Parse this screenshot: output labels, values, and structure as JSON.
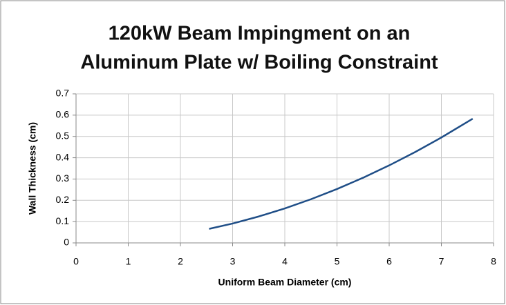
{
  "chart_data": {
    "type": "line",
    "title": [
      "120kW Beam Impingment on an",
      "Aluminum Plate w/ Boiling Constraint"
    ],
    "xlabel": "Uniform Beam Diameter (cm)",
    "ylabel": "Wall Thickness (cm)",
    "x": [
      2.55,
      3,
      3.5,
      4,
      4.5,
      5,
      5.5,
      6,
      6.5,
      7,
      7.6
    ],
    "series": [
      {
        "color": "#1f4e87",
        "values": [
          0.066,
          0.091,
          0.124,
          0.162,
          0.205,
          0.253,
          0.306,
          0.364,
          0.427,
          0.495,
          0.583
        ]
      }
    ],
    "xlim": [
      0,
      8
    ],
    "xticks": [
      0,
      1,
      2,
      3,
      4,
      5,
      6,
      7,
      8
    ],
    "ylim": [
      0,
      0.7
    ],
    "yticks": [
      0,
      0.1,
      0.2,
      0.3,
      0.4,
      0.5,
      0.6,
      0.7
    ],
    "grid": true
  }
}
